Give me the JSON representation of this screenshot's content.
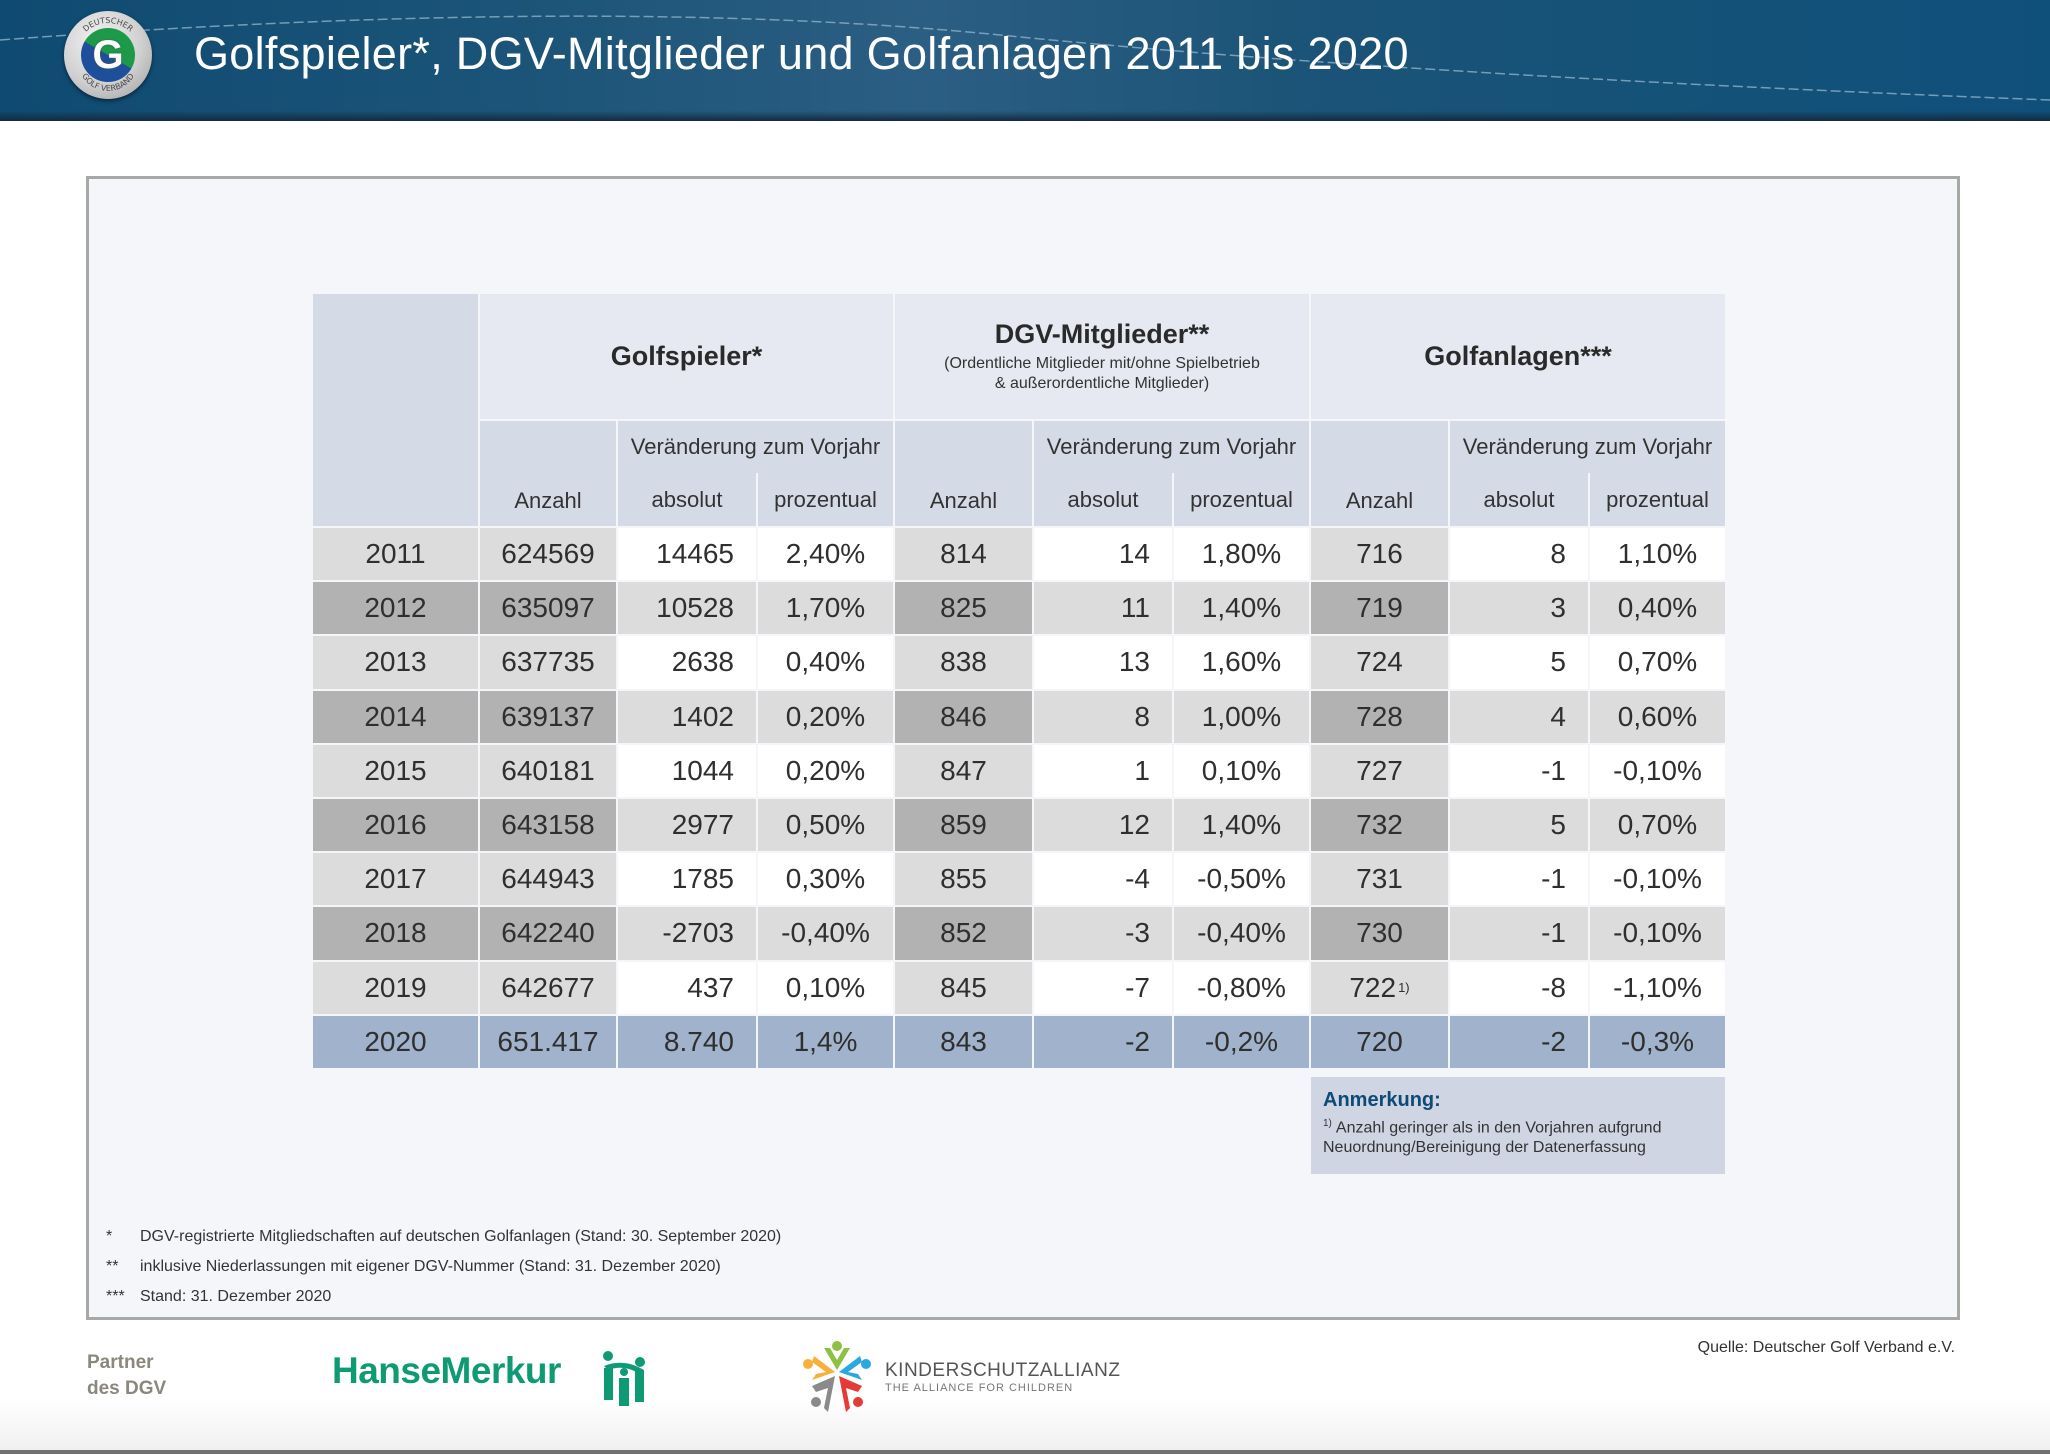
{
  "header": {
    "title": "Golfspieler*, DGV-Mitglieder und Golfanlagen 2011 bis 2020",
    "logo": {
      "icon": "dgv-logo-icon",
      "ring_text_top": "DEUTSCHER",
      "ring_text_bottom": "GOLF VERBAND",
      "letter": "G"
    }
  },
  "table": {
    "groups": [
      {
        "title": "Golfspieler*",
        "subtitle": ""
      },
      {
        "title": "DGV-Mitglieder**",
        "subtitle": "(Ordentliche Mitglieder mit/ohne Spielbetrieb\n& außerordentliche Mitglieder)"
      },
      {
        "title": "Golfanlagen***",
        "subtitle": ""
      }
    ],
    "change_label": "Veränderung zum Vorjahr",
    "sub_headers": [
      "Anzahl",
      "absolut",
      "prozentual"
    ],
    "rows": [
      {
        "year": "2011",
        "values": [
          "624569",
          "14465",
          "2,40%",
          "814",
          "14",
          "1,80%",
          "716",
          "8",
          "1,10%"
        ]
      },
      {
        "year": "2012",
        "values": [
          "635097",
          "10528",
          "1,70%",
          "825",
          "11",
          "1,40%",
          "719",
          "3",
          "0,40%"
        ]
      },
      {
        "year": "2013",
        "values": [
          "637735",
          "2638",
          "0,40%",
          "838",
          "13",
          "1,60%",
          "724",
          "5",
          "0,70%"
        ]
      },
      {
        "year": "2014",
        "values": [
          "639137",
          "1402",
          "0,20%",
          "846",
          "8",
          "1,00%",
          "728",
          "4",
          "0,60%"
        ]
      },
      {
        "year": "2015",
        "values": [
          "640181",
          "1044",
          "0,20%",
          "847",
          "1",
          "0,10%",
          "727",
          "-1",
          "-0,10%"
        ]
      },
      {
        "year": "2016",
        "values": [
          "643158",
          "2977",
          "0,50%",
          "859",
          "12",
          "1,40%",
          "732",
          "5",
          "0,70%"
        ]
      },
      {
        "year": "2017",
        "values": [
          "644943",
          "1785",
          "0,30%",
          "855",
          "-4",
          "-0,50%",
          "731",
          "-1",
          "-0,10%"
        ]
      },
      {
        "year": "2018",
        "values": [
          "642240",
          "-2703",
          "-0,40%",
          "852",
          "-3",
          "-0,40%",
          "730",
          "-1",
          "-0,10%"
        ]
      },
      {
        "year": "2019",
        "values": [
          "642677",
          "437",
          "0,10%",
          "845",
          "-7",
          "-0,80%",
          "722",
          "-8",
          "-1,10%"
        ],
        "golf_anzahl_footnote": "1)"
      },
      {
        "year": "2020",
        "values": [
          "651.417",
          "8.740",
          "1,4%",
          "843",
          "-2",
          "-0,2%",
          "720",
          "-2",
          "-0,3%"
        ],
        "highlight": true
      }
    ]
  },
  "note": {
    "title": "Anmerkung:",
    "marker": "1)",
    "text": "Anzahl geringer als in den Vorjahren aufgrund Neuordnung/Bereinigung der Datenerfassung"
  },
  "footnotes": [
    {
      "mark": "*",
      "text": "DGV-registrierte Mitgliedschaften auf deutschen Golfanlagen (Stand: 30. September 2020)"
    },
    {
      "mark": "**",
      "text": "inklusive Niederlassungen mit eigener DGV-Nummer (Stand: 31. Dezember 2020)"
    },
    {
      "mark": "***",
      "text": "Stand: 31. Dezember 2020"
    }
  ],
  "footer": {
    "partner_line1": "Partner",
    "partner_line2": "des DGV",
    "hansemerkur": "HanseMerkur",
    "kinderschutz_title": "KINDERSCHUTZALLIANZ",
    "kinderschutz_sub": "THE ALLIANCE FOR CHILDREN",
    "source": "Quelle: Deutscher Golf Verband e.V."
  },
  "colors": {
    "header_blue": "#1b5478",
    "accent_blue": "#0e4a76",
    "highlight_row": "#a1b2cc",
    "hansemerkur_green": "#0e9b74"
  }
}
